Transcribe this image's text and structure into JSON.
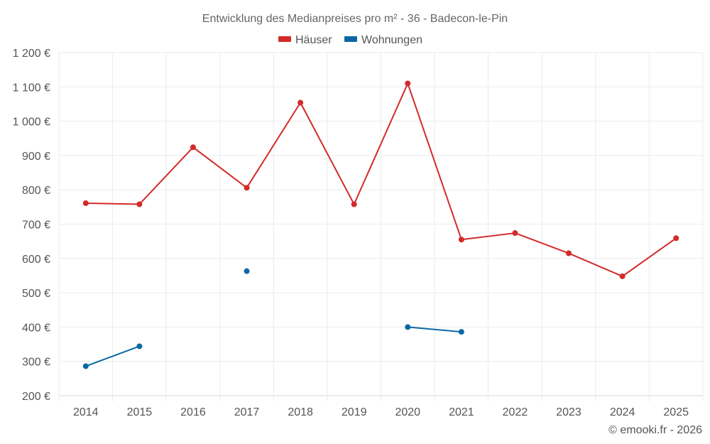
{
  "chart_data": {
    "type": "line",
    "title": "Entwicklung des Medianpreises pro m² - 36 - Badecon-le-Pin",
    "categories": [
      "2014",
      "2015",
      "2016",
      "2017",
      "2018",
      "2019",
      "2020",
      "2021",
      "2022",
      "2023",
      "2024",
      "2025"
    ],
    "ylim": [
      200,
      1200
    ],
    "yticks": [
      200,
      300,
      400,
      500,
      600,
      700,
      800,
      900,
      1000,
      1100,
      1200
    ],
    "ytick_labels": [
      "200 €",
      "300 €",
      "400 €",
      "500 €",
      "600 €",
      "700 €",
      "800 €",
      "900 €",
      "1 000 €",
      "1 100 €",
      "1 200 €"
    ],
    "xlabel": "",
    "ylabel": "",
    "grid": true,
    "legend_position": "top-center",
    "series": [
      {
        "name": "Häuser",
        "color": "#d32a2a",
        "values": [
          761,
          758,
          924,
          806,
          1054,
          758,
          1110,
          655,
          674,
          615,
          548,
          659
        ]
      },
      {
        "name": "Wohnungen",
        "color": "#0a69a5",
        "values": [
          286,
          344,
          null,
          563,
          null,
          null,
          400,
          386,
          null,
          null,
          null,
          null
        ]
      }
    ]
  },
  "footer": {
    "credit": "© emooki.fr - 2026"
  }
}
